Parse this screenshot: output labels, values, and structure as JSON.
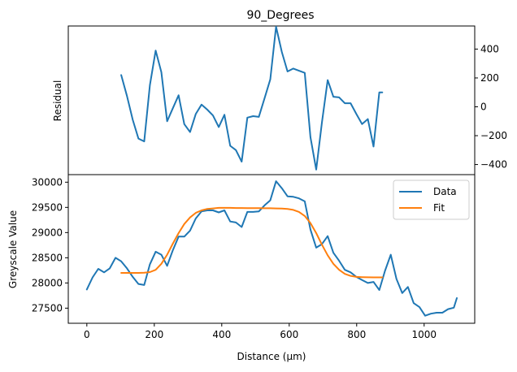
{
  "colors": {
    "data": "#1f77b4",
    "fit": "#ff7f0e",
    "axis": "#000000",
    "background": "#ffffff"
  },
  "chart_data": [
    {
      "panel": "top",
      "type": "line",
      "title": "90_Degrees",
      "xlabel": "",
      "ylabel": "Residual",
      "xlim": [
        -55,
        1150
      ],
      "ylim": [
        -470,
        560
      ],
      "y_axis_side": "right",
      "yticks": [
        -400,
        -200,
        0,
        200,
        400
      ],
      "yticklabels": [
        "−400",
        "−200",
        "0",
        "200",
        "400"
      ],
      "grid": false,
      "series": [
        {
          "key": "residual",
          "x": [
            102,
            119,
            136,
            153,
            170,
            187,
            204,
            221,
            238,
            255,
            272,
            289,
            306,
            323,
            340,
            357,
            374,
            391,
            408,
            425,
            442,
            459,
            476,
            493,
            510,
            527,
            544,
            561,
            578,
            595,
            612,
            629,
            646,
            663,
            680,
            697,
            714,
            731,
            748,
            765,
            782,
            799,
            816,
            833,
            850,
            867,
            876
          ],
          "values": [
            220,
            75,
            -90,
            -220,
            -240,
            150,
            390,
            240,
            -100,
            -10,
            80,
            -120,
            -175,
            -50,
            15,
            -20,
            -60,
            -140,
            -55,
            -270,
            -300,
            -380,
            -75,
            -65,
            -70,
            60,
            190,
            555,
            380,
            245,
            265,
            250,
            235,
            -210,
            -435,
            -110,
            185,
            70,
            65,
            25,
            25,
            -50,
            -120,
            -85,
            -275,
            100,
            100
          ]
        }
      ]
    },
    {
      "panel": "bottom",
      "type": "line",
      "title": "",
      "xlabel": "Distance (μm)",
      "ylabel": "Greyscale Value",
      "xlim": [
        -55,
        1150
      ],
      "ylim": [
        27200,
        30150
      ],
      "xticks": [
        0,
        200,
        400,
        600,
        800,
        1000
      ],
      "xticklabels": [
        "0",
        "200",
        "400",
        "600",
        "800",
        "1000"
      ],
      "yticks": [
        27500,
        28000,
        28500,
        29000,
        29500,
        30000
      ],
      "yticklabels": [
        "27500",
        "28000",
        "28500",
        "29000",
        "29500",
        "30000"
      ],
      "grid": false,
      "legend": "upper-right",
      "series": [
        {
          "key": "data",
          "name": "Data",
          "x": [
            0,
            17,
            34,
            51,
            68,
            85,
            102,
            119,
            136,
            153,
            170,
            187,
            204,
            221,
            238,
            255,
            272,
            289,
            306,
            323,
            340,
            357,
            374,
            391,
            408,
            425,
            442,
            459,
            476,
            493,
            510,
            527,
            544,
            561,
            578,
            595,
            612,
            629,
            646,
            663,
            680,
            697,
            714,
            731,
            748,
            765,
            782,
            799,
            816,
            833,
            850,
            867,
            884,
            901,
            918,
            935,
            952,
            969,
            986,
            1003,
            1020,
            1037,
            1054,
            1071,
            1088,
            1097
          ],
          "values": [
            27870,
            28110,
            28280,
            28210,
            28290,
            28500,
            28430,
            28290,
            28120,
            27980,
            27960,
            28370,
            28620,
            28560,
            28340,
            28650,
            28920,
            28920,
            29040,
            29280,
            29420,
            29440,
            29440,
            29400,
            29440,
            29220,
            29200,
            29110,
            29410,
            29410,
            29420,
            29540,
            29640,
            30020,
            29880,
            29720,
            29710,
            29680,
            29620,
            29060,
            28700,
            28770,
            28930,
            28600,
            28440,
            28260,
            28210,
            28120,
            28060,
            28000,
            28020,
            27860,
            28240,
            28560,
            28080,
            27800,
            27920,
            27600,
            27520,
            27350,
            27390,
            27410,
            27410,
            27480,
            27510,
            27700
          ]
        },
        {
          "key": "fit",
          "name": "Fit",
          "x": [
            102,
            119,
            136,
            153,
            170,
            187,
            204,
            221,
            238,
            255,
            272,
            289,
            306,
            323,
            340,
            357,
            374,
            391,
            408,
            425,
            442,
            459,
            476,
            493,
            510,
            527,
            544,
            561,
            578,
            595,
            612,
            629,
            646,
            663,
            680,
            697,
            714,
            731,
            748,
            765,
            782,
            799,
            816,
            833,
            850,
            867,
            876
          ],
          "values": [
            28200,
            28200,
            28200,
            28200,
            28205,
            28215,
            28260,
            28380,
            28560,
            28780,
            28990,
            29170,
            29300,
            29390,
            29440,
            29470,
            29480,
            29490,
            29490,
            29490,
            29488,
            29487,
            29486,
            29485,
            29484,
            29483,
            29482,
            29480,
            29476,
            29468,
            29450,
            29410,
            29330,
            29190,
            28990,
            28760,
            28550,
            28380,
            28260,
            28180,
            28140,
            28120,
            28115,
            28112,
            28110,
            28110,
            28110
          ]
        }
      ]
    }
  ]
}
